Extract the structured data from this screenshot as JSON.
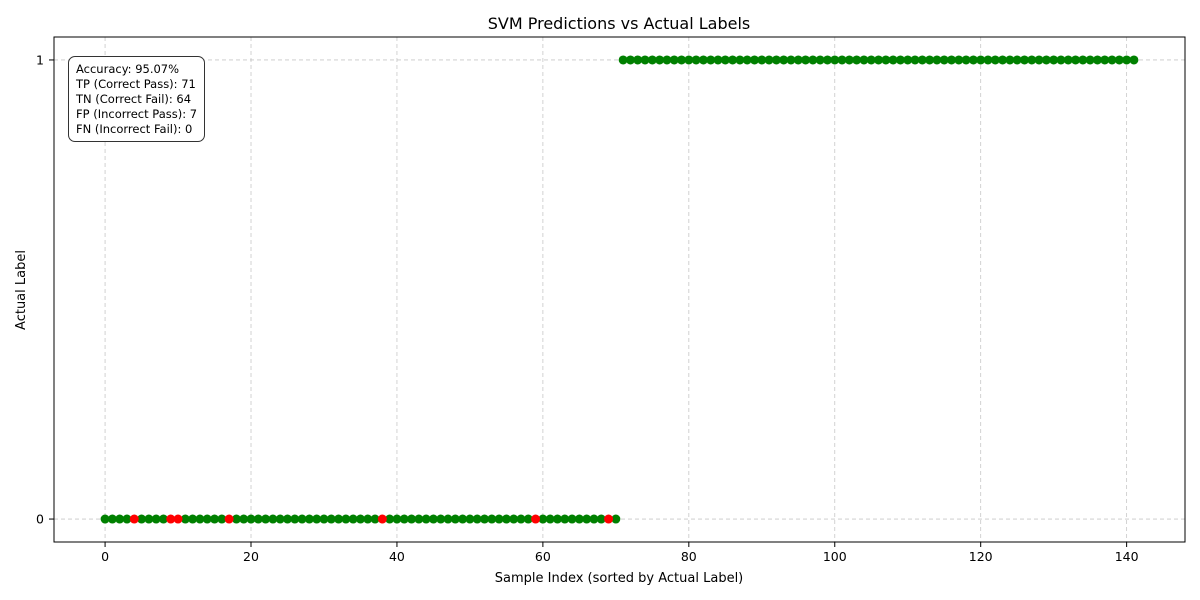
{
  "chart_data": {
    "type": "scatter",
    "title": "SVM Predictions vs Actual Labels",
    "xlabel": "Sample Index (sorted by Actual Label)",
    "ylabel": "Actual Label",
    "xlim": [
      -7,
      148
    ],
    "ylim": [
      -0.05,
      1.05
    ],
    "xticks": [
      0,
      20,
      40,
      60,
      80,
      100,
      120,
      140
    ],
    "yticks": [
      0,
      1
    ],
    "grid": true,
    "series": [
      {
        "color": "#008000",
        "segments": [
          {
            "x_start": 0,
            "x_end": 70,
            "y": 0
          },
          {
            "x_start": 71,
            "x_end": 141,
            "y": 1
          }
        ]
      },
      {
        "color": "#ff0000",
        "points": [
          {
            "x": 4,
            "y": 0
          },
          {
            "x": 9,
            "y": 0
          },
          {
            "x": 10,
            "y": 0
          },
          {
            "x": 17,
            "y": 0
          },
          {
            "x": 38,
            "y": 0
          },
          {
            "x": 59,
            "y": 0
          },
          {
            "x": 69,
            "y": 0
          }
        ]
      }
    ],
    "annotation": [
      "Accuracy: 95.07%",
      "TP (Correct Pass): 71",
      "TN (Correct Fail): 64",
      "FP (Incorrect Pass): 7",
      "FN (Incorrect Fail): 0"
    ]
  }
}
